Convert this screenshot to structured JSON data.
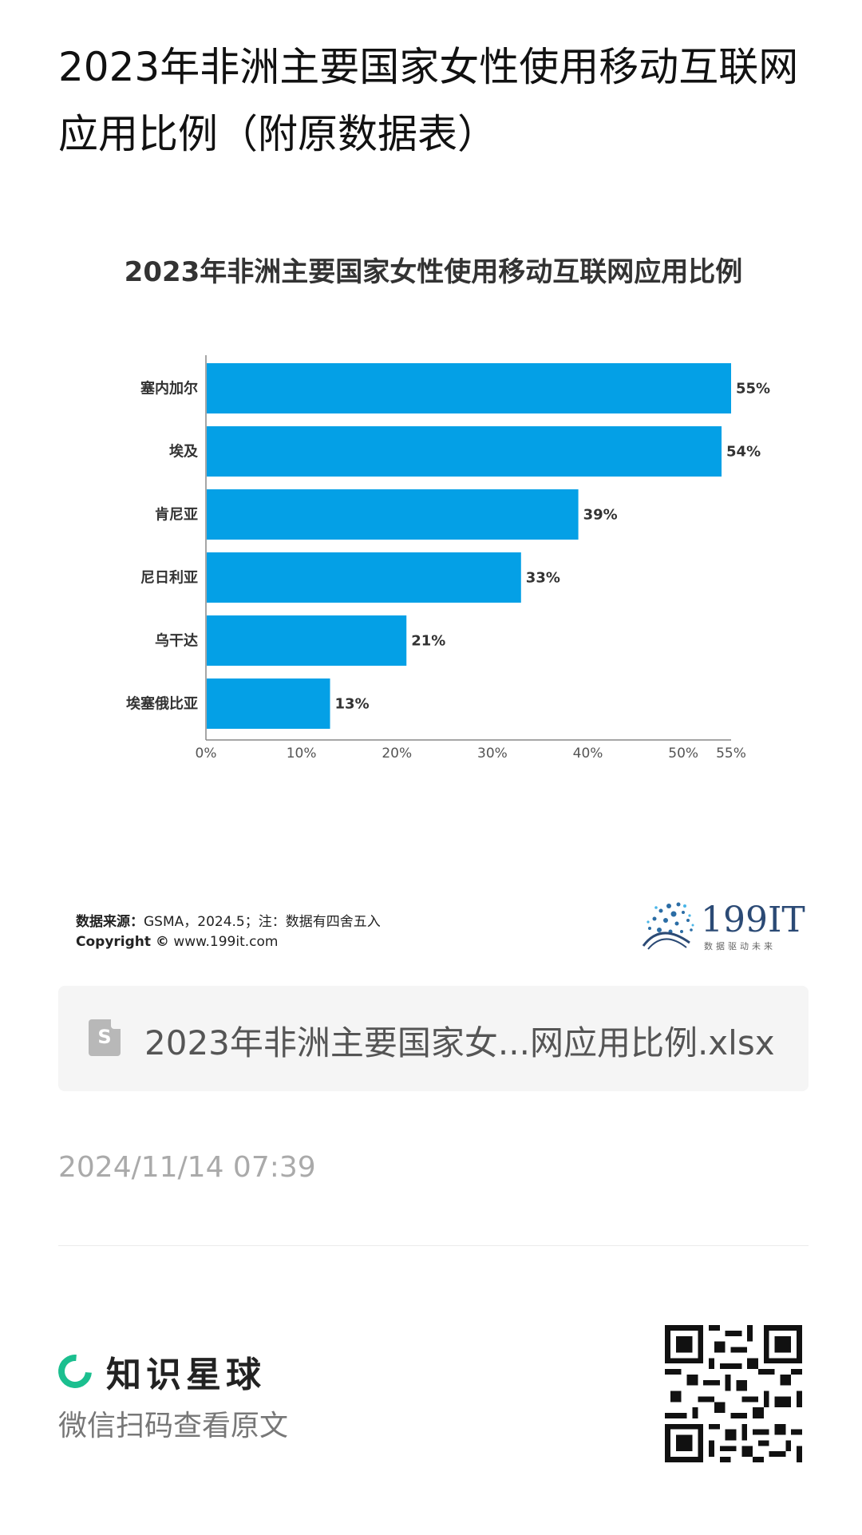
{
  "page": {
    "title": "2023年非洲主要国家女性使用移动互联网应用比例（附原数据表）",
    "file_name": "2023年非洲主要国家女...网应用比例.xlsx",
    "file_icon_letter": "S",
    "timestamp": "2024/11/14 07:39",
    "footer": {
      "brand": "知识星球",
      "hint": "微信扫码查看原文"
    }
  },
  "chart_data": {
    "type": "bar",
    "orientation": "horizontal",
    "title": "2023年非洲主要国家女性使用移动互联网应用比例",
    "categories": [
      "塞内加尔",
      "埃及",
      "肯尼亚",
      "尼日利亚",
      "乌干达",
      "埃塞俄比亚"
    ],
    "values": [
      55,
      54,
      39,
      33,
      21,
      13
    ],
    "data_labels": [
      "55%",
      "54%",
      "39%",
      "33%",
      "21%",
      "13%"
    ],
    "x_ticks": [
      "0%",
      "10%",
      "20%",
      "30%",
      "40%",
      "50%",
      "55%"
    ],
    "x_tick_values": [
      0,
      10,
      20,
      30,
      40,
      50,
      55
    ],
    "xlim": [
      0,
      55
    ],
    "bar_color": "#04a0e6",
    "grid": false
  },
  "chart_footer": {
    "source_label": "数据来源：",
    "source_text": "GSMA，2024.5；注：数据有四舍五入",
    "copyright_label": "Copyright ©",
    "copyright_text": " www.199it.com",
    "brand_name": "199IT",
    "brand_tagline": "数据驱动未来"
  }
}
